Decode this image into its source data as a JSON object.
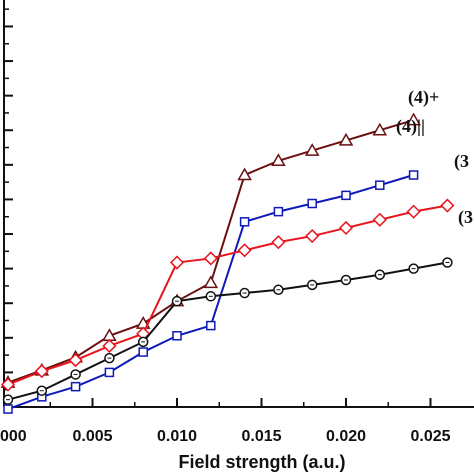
{
  "chart_data": {
    "type": "line",
    "xlabel": "Field strength (a.u.)",
    "ylabel": "",
    "xlim": [
      0.0,
      0.027
    ],
    "ylim": [
      0.0,
      1.0
    ],
    "grid": false,
    "xticks": [
      0.0,
      0.005,
      0.01,
      0.015,
      0.02,
      0.025
    ],
    "xtick_labels": [
      "000",
      "0.005",
      "0.010",
      "0.015",
      "0.020",
      "0.025"
    ],
    "series": [
      {
        "name": "(4)+",
        "color": "#6b0f0f",
        "marker": "triangle",
        "x": [
          0.0,
          0.002,
          0.004,
          0.006,
          0.008,
          0.01,
          0.012,
          0.014,
          0.016,
          0.018,
          0.02,
          0.022,
          0.024
        ],
        "y": [
          0.06,
          0.09,
          0.122,
          0.175,
          0.205,
          0.26,
          0.305,
          0.57,
          0.605,
          0.63,
          0.655,
          0.68,
          0.705
        ]
      },
      {
        "name": "(4)||",
        "color": "#0f1ab8",
        "marker": "square",
        "x": [
          0.0,
          0.002,
          0.004,
          0.006,
          0.008,
          0.01,
          0.012,
          0.014,
          0.016,
          0.018,
          0.02,
          0.022,
          0.024
        ],
        "y": [
          -0.005,
          0.025,
          0.05,
          0.085,
          0.135,
          0.175,
          0.2,
          0.455,
          0.48,
          0.5,
          0.52,
          0.545,
          0.57
        ]
      },
      {
        "name": "(3",
        "color": "#e8141e",
        "marker": "diamond",
        "x": [
          0.0,
          0.002,
          0.004,
          0.006,
          0.008,
          0.01,
          0.012,
          0.014,
          0.016,
          0.018,
          0.02,
          0.022,
          0.024,
          0.026
        ],
        "y": [
          0.055,
          0.088,
          0.115,
          0.15,
          0.18,
          0.355,
          0.365,
          0.385,
          0.405,
          0.42,
          0.44,
          0.46,
          0.48,
          0.495
        ]
      },
      {
        "name": "(3",
        "color": "#111111",
        "marker": "circle",
        "x": [
          0.0,
          0.002,
          0.004,
          0.006,
          0.008,
          0.01,
          0.012,
          0.014,
          0.016,
          0.018,
          0.02,
          0.022,
          0.024,
          0.026
        ],
        "y": [
          0.018,
          0.04,
          0.08,
          0.12,
          0.16,
          0.26,
          0.272,
          0.28,
          0.288,
          0.3,
          0.312,
          0.325,
          0.34,
          0.355
        ]
      }
    ]
  }
}
